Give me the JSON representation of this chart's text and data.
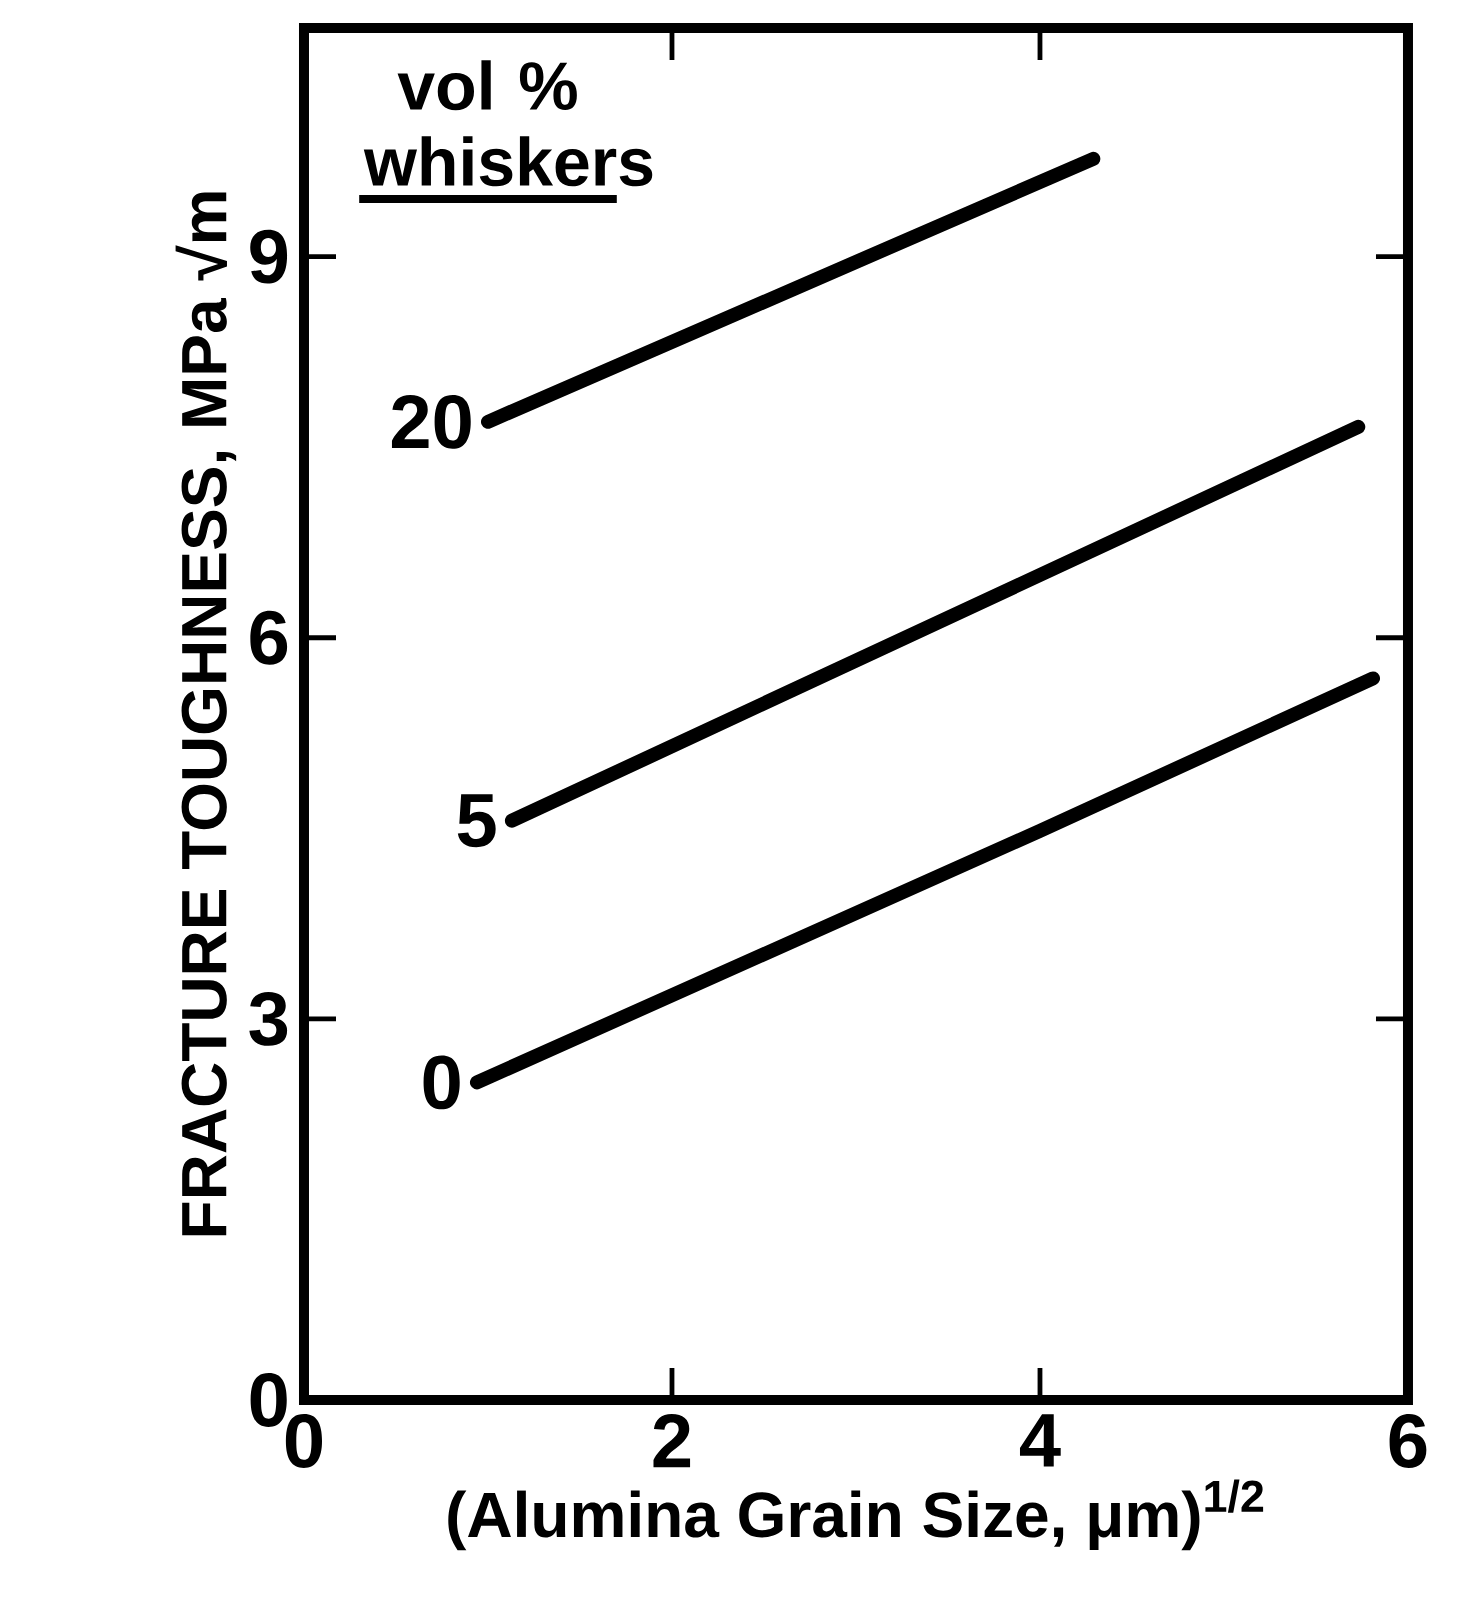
{
  "chart_data": {
    "type": "line",
    "xlabel": "(Alumina Grain Size, μm)$^{1/2}$",
    "ylabel": "FRACTURE TOUGHNESS, MPa √m",
    "legend_title": "vol % whiskers",
    "series": [
      {
        "name": "20",
        "color": "#000000",
        "x": [
          1.0,
          4.29
        ],
        "values": [
          7.7,
          9.77
        ]
      },
      {
        "name": "5",
        "color": "#000000",
        "x": [
          1.13,
          5.73
        ],
        "values": [
          4.56,
          7.66
        ]
      },
      {
        "name": "0",
        "color": "#000000",
        "x": [
          0.94,
          4.0,
          5.81
        ],
        "values": [
          2.5,
          4.48,
          5.68
        ]
      }
    ],
    "xlim": [
      0,
      6
    ],
    "ylim": [
      0,
      10.8
    ],
    "xticks": [
      0,
      2,
      4,
      6
    ],
    "yticks": [
      0,
      3,
      6,
      9
    ],
    "legend": false,
    "marker": "none",
    "line_style": "solid",
    "grid": false
  }
}
